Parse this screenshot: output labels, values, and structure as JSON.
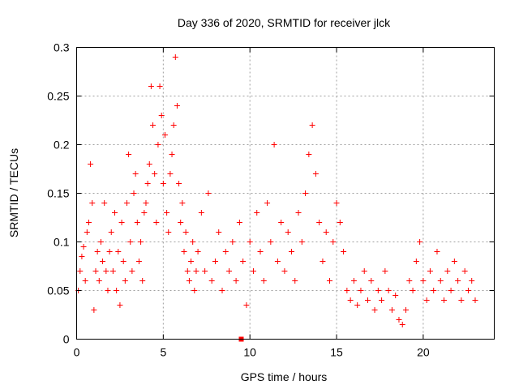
{
  "chart_data": {
    "type": "scatter",
    "title": "Day 336 of 2020, SRMTID for receiver jlck",
    "xlabel": "GPS time / hours",
    "ylabel": "SRMTID / TECUs",
    "xlim": [
      0,
      24.1
    ],
    "ylim": [
      0,
      0.3
    ],
    "grid": true,
    "x_ticks": [
      0,
      5,
      10,
      15,
      20
    ],
    "y_ticks": [
      0,
      0.05,
      0.1,
      0.15,
      0.2,
      0.25,
      0.3
    ],
    "marker": "+",
    "color": "#ff0000",
    "series": [
      {
        "name": "SRMTID",
        "points": [
          [
            0.1,
            0.05
          ],
          [
            0.2,
            0.07
          ],
          [
            0.3,
            0.085
          ],
          [
            0.4,
            0.095
          ],
          [
            0.5,
            0.06
          ],
          [
            0.6,
            0.11
          ],
          [
            0.7,
            0.12
          ],
          [
            0.8,
            0.18
          ],
          [
            0.9,
            0.14
          ],
          [
            1.0,
            0.03
          ],
          [
            1.1,
            0.07
          ],
          [
            1.2,
            0.09
          ],
          [
            1.3,
            0.06
          ],
          [
            1.4,
            0.1
          ],
          [
            1.5,
            0.08
          ],
          [
            1.6,
            0.14
          ],
          [
            1.7,
            0.07
          ],
          [
            1.8,
            0.05
          ],
          [
            1.9,
            0.09
          ],
          [
            2.0,
            0.11
          ],
          [
            2.1,
            0.07
          ],
          [
            2.2,
            0.13
          ],
          [
            2.3,
            0.05
          ],
          [
            2.4,
            0.09
          ],
          [
            2.5,
            0.035
          ],
          [
            2.6,
            0.12
          ],
          [
            2.7,
            0.08
          ],
          [
            2.8,
            0.06
          ],
          [
            2.9,
            0.14
          ],
          [
            3.0,
            0.19
          ],
          [
            3.1,
            0.1
          ],
          [
            3.2,
            0.07
          ],
          [
            3.3,
            0.15
          ],
          [
            3.4,
            0.17
          ],
          [
            3.5,
            0.12
          ],
          [
            3.6,
            0.08
          ],
          [
            3.7,
            0.1
          ],
          [
            3.8,
            0.06
          ],
          [
            3.9,
            0.13
          ],
          [
            4.0,
            0.14
          ],
          [
            4.1,
            0.16
          ],
          [
            4.2,
            0.18
          ],
          [
            4.3,
            0.26
          ],
          [
            4.4,
            0.22
          ],
          [
            4.5,
            0.17
          ],
          [
            4.6,
            0.12
          ],
          [
            4.7,
            0.2
          ],
          [
            4.8,
            0.26
          ],
          [
            4.9,
            0.23
          ],
          [
            5.0,
            0.16
          ],
          [
            5.1,
            0.21
          ],
          [
            5.2,
            0.13
          ],
          [
            5.3,
            0.11
          ],
          [
            5.4,
            0.17
          ],
          [
            5.5,
            0.19
          ],
          [
            5.6,
            0.22
          ],
          [
            5.7,
            0.29
          ],
          [
            5.8,
            0.24
          ],
          [
            5.9,
            0.16
          ],
          [
            6.0,
            0.12
          ],
          [
            6.1,
            0.14
          ],
          [
            6.2,
            0.09
          ],
          [
            6.3,
            0.11
          ],
          [
            6.4,
            0.07
          ],
          [
            6.5,
            0.06
          ],
          [
            6.6,
            0.08
          ],
          [
            6.7,
            0.1
          ],
          [
            6.8,
            0.05
          ],
          [
            6.9,
            0.07
          ],
          [
            7.0,
            0.09
          ],
          [
            7.2,
            0.13
          ],
          [
            7.4,
            0.07
          ],
          [
            7.6,
            0.15
          ],
          [
            7.8,
            0.06
          ],
          [
            8.0,
            0.08
          ],
          [
            8.2,
            0.11
          ],
          [
            8.4,
            0.05
          ],
          [
            8.6,
            0.09
          ],
          [
            8.8,
            0.07
          ],
          [
            9.0,
            0.1
          ],
          [
            9.2,
            0.06
          ],
          [
            9.4,
            0.12
          ],
          [
            9.6,
            0.08
          ],
          [
            9.8,
            0.035
          ],
          [
            10.0,
            0.1
          ],
          [
            10.2,
            0.07
          ],
          [
            10.4,
            0.13
          ],
          [
            10.6,
            0.09
          ],
          [
            10.8,
            0.06
          ],
          [
            11.0,
            0.14
          ],
          [
            11.2,
            0.1
          ],
          [
            11.4,
            0.2
          ],
          [
            11.6,
            0.08
          ],
          [
            11.8,
            0.12
          ],
          [
            12.0,
            0.07
          ],
          [
            12.2,
            0.11
          ],
          [
            12.4,
            0.09
          ],
          [
            12.6,
            0.06
          ],
          [
            12.8,
            0.13
          ],
          [
            13.0,
            0.1
          ],
          [
            13.2,
            0.15
          ],
          [
            13.4,
            0.19
          ],
          [
            13.6,
            0.22
          ],
          [
            13.8,
            0.17
          ],
          [
            14.0,
            0.12
          ],
          [
            14.2,
            0.08
          ],
          [
            14.4,
            0.11
          ],
          [
            14.6,
            0.06
          ],
          [
            14.8,
            0.1
          ],
          [
            15.0,
            0.14
          ],
          [
            15.2,
            0.12
          ],
          [
            15.4,
            0.09
          ],
          [
            15.6,
            0.05
          ],
          [
            15.8,
            0.04
          ],
          [
            16.0,
            0.06
          ],
          [
            16.2,
            0.035
          ],
          [
            16.4,
            0.05
          ],
          [
            16.6,
            0.07
          ],
          [
            16.8,
            0.04
          ],
          [
            17.0,
            0.06
          ],
          [
            17.2,
            0.03
          ],
          [
            17.4,
            0.05
          ],
          [
            17.6,
            0.04
          ],
          [
            17.8,
            0.07
          ],
          [
            18.0,
            0.05
          ],
          [
            18.2,
            0.03
          ],
          [
            18.4,
            0.045
          ],
          [
            18.6,
            0.02
          ],
          [
            18.8,
            0.015
          ],
          [
            19.0,
            0.03
          ],
          [
            19.2,
            0.06
          ],
          [
            19.4,
            0.05
          ],
          [
            19.6,
            0.08
          ],
          [
            19.8,
            0.1
          ],
          [
            20.0,
            0.06
          ],
          [
            20.2,
            0.04
          ],
          [
            20.4,
            0.07
          ],
          [
            20.6,
            0.05
          ],
          [
            20.8,
            0.09
          ],
          [
            21.0,
            0.06
          ],
          [
            21.2,
            0.04
          ],
          [
            21.4,
            0.07
          ],
          [
            21.6,
            0.05
          ],
          [
            21.8,
            0.08
          ],
          [
            22.0,
            0.06
          ],
          [
            22.2,
            0.04
          ],
          [
            22.4,
            0.07
          ],
          [
            22.6,
            0.05
          ],
          [
            22.8,
            0.06
          ],
          [
            23.0,
            0.04
          ]
        ]
      }
    ],
    "marker_point": {
      "x": 9.5,
      "y": 0.0
    }
  }
}
